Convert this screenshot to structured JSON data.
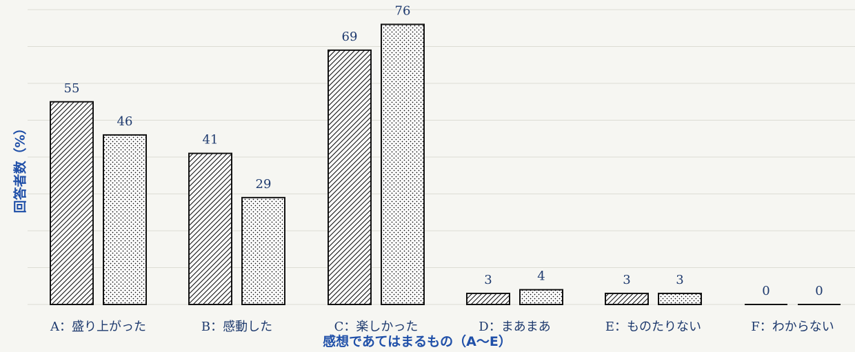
{
  "chart_data": {
    "type": "bar",
    "xlabel": "感想であてはまるもの（A〜E）",
    "ylabel": "回答者数（%）",
    "categories": [
      "A：盛り上がった",
      "B：感動した",
      "C：楽しかった",
      "D：まあまあ",
      "E：ものたりない",
      "F：わからない"
    ],
    "series": [
      {
        "pattern": "diagonal-hatch",
        "values": [
          55,
          41,
          69,
          3,
          3,
          0
        ]
      },
      {
        "pattern": "dots",
        "values": [
          46,
          29,
          76,
          4,
          3,
          0
        ]
      }
    ],
    "ylim": [
      0,
      80
    ],
    "grid": true
  },
  "colors": {
    "text": "#1e3a6e",
    "axis_title": "#1f4fa8",
    "bar_stroke": "#111111",
    "background": "#f6f6f2",
    "gridline": "#dcdcd4"
  }
}
